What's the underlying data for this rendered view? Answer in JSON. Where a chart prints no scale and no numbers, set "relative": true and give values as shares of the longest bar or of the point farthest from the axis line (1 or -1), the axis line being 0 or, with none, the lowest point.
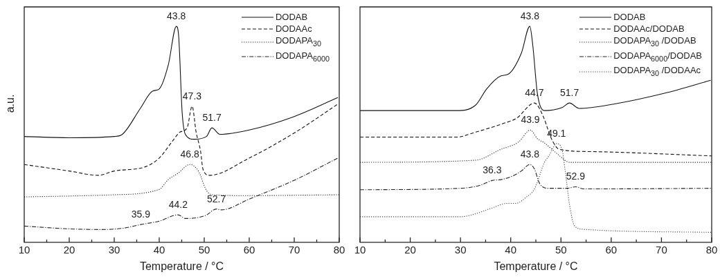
{
  "chart_data": [
    {
      "type": "line",
      "relative": true,
      "ylabel": "a.u.",
      "xlabel": "Temperature / °C",
      "xlim": [
        10,
        80
      ],
      "xticks": [
        10,
        {
          "value": 15,
          "label": null
        },
        20,
        {
          "value": 25,
          "label": null
        },
        30,
        {
          "value": 35,
          "label": null
        },
        40,
        {
          "value": 45,
          "label": null
        },
        50,
        {
          "value": 55,
          "label": null
        },
        60,
        {
          "value": 65,
          "label": null
        },
        70,
        {
          "value": 75,
          "label": null
        },
        80
      ],
      "legend": "top right",
      "grid": false,
      "marker": "none",
      "series": [
        {
          "name": "DODAB",
          "color": "#111111",
          "line_style": "solid",
          "x": [
            10,
            20,
            30,
            31.8,
            35.8,
            38.5,
            40,
            42,
            43.8,
            44.3,
            45.1,
            45.8,
            47.7,
            50.5,
            51.7,
            53.5,
            60,
            69.7,
            79.7
          ],
          "values": [
            0.49,
            0.484,
            0.49,
            0.5,
            0.62,
            0.7,
            0.71,
            0.82,
            1.0,
            0.96,
            0.6,
            0.5,
            0.477,
            0.49,
            0.53,
            0.5,
            0.52,
            0.58,
            0.67
          ]
        },
        {
          "name": "DODAAc",
          "color": "#111111",
          "line_style": "dashed",
          "x": [
            10,
            20,
            26.5,
            30,
            37,
            40,
            43,
            44.6,
            46.2,
            47.3,
            48.2,
            49.2,
            49.7,
            51.1,
            60,
            70.3,
            79.7
          ],
          "values": [
            0.36,
            0.33,
            0.31,
            0.33,
            0.35,
            0.39,
            0.47,
            0.51,
            0.53,
            0.63,
            0.51,
            0.42,
            0.34,
            0.31,
            0.39,
            0.51,
            0.64
          ]
        },
        {
          "name": "DODAPA$_{30}$",
          "color": "#222222",
          "line_style": "dotted",
          "x": [
            10,
            30,
            40,
            42,
            44.2,
            46.8,
            48.7,
            50.5,
            51.8,
            60,
            80
          ],
          "values": [
            0.21,
            0.22,
            0.245,
            0.29,
            0.32,
            0.36,
            0.33,
            0.24,
            0.22,
            0.216,
            0.22
          ]
        },
        {
          "name": "DODAPA$_{6000}$",
          "color": "#222222",
          "line_style": "dashdot",
          "x": [
            10,
            20,
            27,
            32,
            35.9,
            40,
            44.2,
            45.8,
            50.3,
            52.7,
            53.8,
            60,
            70.3,
            79.7
          ],
          "values": [
            0.075,
            0.062,
            0.059,
            0.065,
            0.082,
            0.098,
            0.127,
            0.11,
            0.124,
            0.154,
            0.15,
            0.2,
            0.29,
            0.39
          ]
        }
      ],
      "annotations": [
        {
          "text": "43.8",
          "x": 43.8,
          "y": 1.0
        },
        {
          "text": "47.3",
          "x": 47.3,
          "y": 0.63
        },
        {
          "text": "51.7",
          "x": 51.7,
          "y": 0.53
        },
        {
          "text": "46.8",
          "x": 46.8,
          "y": 0.36
        },
        {
          "text": "35.9",
          "x": 35.9,
          "y": 0.082
        },
        {
          "text": "44.2",
          "x": 44.2,
          "y": 0.127
        },
        {
          "text": "52.7",
          "x": 52.7,
          "y": 0.154
        }
      ]
    },
    {
      "type": "line",
      "relative": true,
      "xlabel": "Temperature / °C",
      "xlim": [
        10,
        80
      ],
      "xticks": [
        10,
        {
          "value": 15,
          "label": null
        },
        20,
        {
          "value": 25,
          "label": null
        },
        30,
        {
          "value": 35,
          "label": null
        },
        40,
        {
          "value": 45,
          "label": null
        },
        50,
        {
          "value": 55,
          "label": null
        },
        60,
        {
          "value": 65,
          "label": null
        },
        70,
        {
          "value": 75,
          "label": null
        },
        80
      ],
      "legend": "top right",
      "grid": false,
      "marker": "none",
      "series": [
        {
          "name": "DODAB",
          "color": "#111111",
          "line_style": "solid",
          "x": [
            10,
            29.2,
            33,
            35.2,
            38,
            39.6,
            42.1,
            43.8,
            44.4,
            45.3,
            46.7,
            50.3,
            51.7,
            53.6,
            60.5,
            70.6,
            79.8
          ],
          "values": [
            0.61,
            0.61,
            0.635,
            0.71,
            0.77,
            0.78,
            0.875,
            1.0,
            0.91,
            0.69,
            0.61,
            0.625,
            0.645,
            0.62,
            0.64,
            0.69,
            0.75
          ]
        },
        {
          "name": "DODAAc/DODAB",
          "color": "#111111",
          "line_style": "dashed",
          "x": [
            10,
            29.2,
            33,
            38.5,
            41.2,
            44.7,
            46.7,
            47.2,
            48.3,
            49.7,
            55.8,
            80
          ],
          "values": [
            0.487,
            0.487,
            0.51,
            0.55,
            0.575,
            0.645,
            0.57,
            0.536,
            0.47,
            0.43,
            0.42,
            0.4
          ]
        },
        {
          "name": "DODAPA$_{30}$ /DODAB",
          "color": "#222222",
          "line_style": "dotted",
          "x": [
            10,
            33,
            38,
            41.6,
            43.9,
            45.3,
            46.7,
            49.5,
            51.7,
            80
          ],
          "values": [
            0.37,
            0.38,
            0.43,
            0.465,
            0.52,
            0.48,
            0.46,
            0.405,
            0.37,
            0.37
          ]
        },
        {
          "name": "DODAPA$_{6000}$/DODAB",
          "color": "#222222",
          "line_style": "dashdot",
          "x": [
            10,
            30,
            33.8,
            36.3,
            38,
            40.3,
            42.1,
            43.8,
            44.7,
            45.8,
            47.6,
            51.3,
            52.9,
            54.5,
            80
          ],
          "values": [
            0.243,
            0.25,
            0.263,
            0.286,
            0.29,
            0.306,
            0.33,
            0.36,
            0.34,
            0.27,
            0.25,
            0.25,
            0.257,
            0.247,
            0.25
          ]
        },
        {
          "name": "DODAPA$_{30}$ /DODAAc",
          "color": "#444444",
          "line_style": "dotted",
          "x": [
            10,
            30,
            32,
            36.2,
            39.3,
            41,
            43,
            44.8,
            46.7,
            47.6,
            48.5,
            49.1,
            50.2,
            50.9,
            51.7,
            52.7,
            54.5,
            80
          ],
          "values": [
            0.118,
            0.118,
            0.125,
            0.158,
            0.18,
            0.18,
            0.207,
            0.25,
            0.37,
            0.4,
            0.44,
            0.457,
            0.43,
            0.32,
            0.175,
            0.076,
            0.06,
            0.046
          ]
        }
      ],
      "annotations": [
        {
          "text": "43.8",
          "x": 43.8,
          "y": 1.0
        },
        {
          "text": "44.7",
          "x": 44.7,
          "y": 0.645
        },
        {
          "text": "51.7",
          "x": 51.7,
          "y": 0.645
        },
        {
          "text": "43.9",
          "x": 43.9,
          "y": 0.52
        },
        {
          "text": "49.1",
          "x": 49.1,
          "y": 0.457
        },
        {
          "text": "36.3",
          "x": 36.3,
          "y": 0.286
        },
        {
          "text": "43.8",
          "x": 43.8,
          "y": 0.36
        },
        {
          "text": "52.9",
          "x": 52.9,
          "y": 0.257
        }
      ]
    }
  ]
}
